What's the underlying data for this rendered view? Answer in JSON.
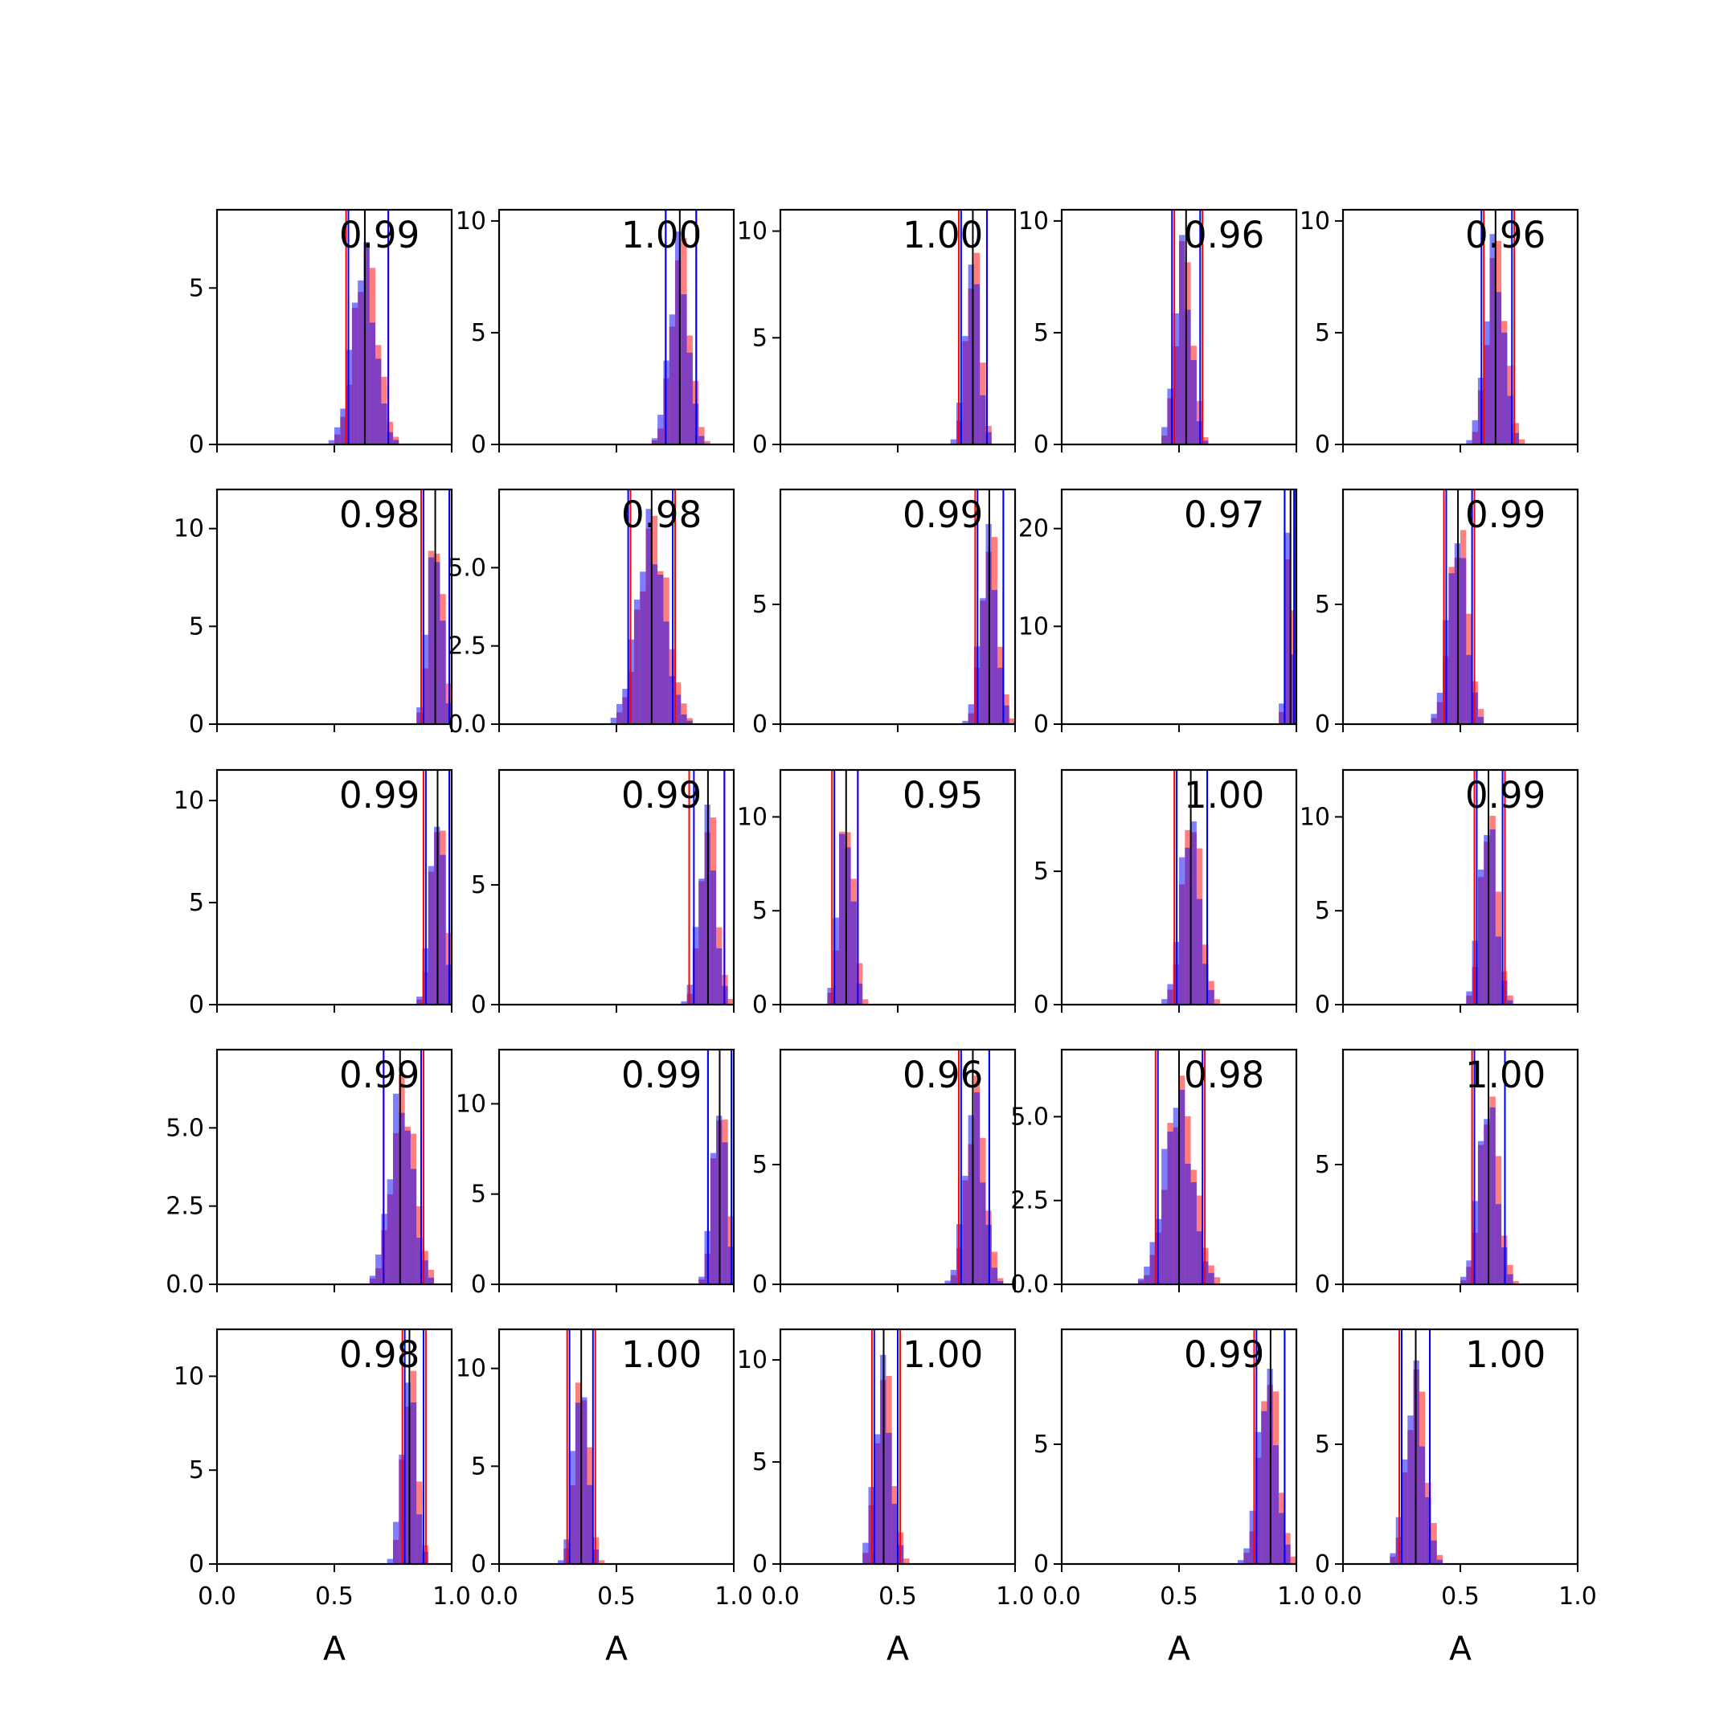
{
  "figure": {
    "rows": 5,
    "cols": 5,
    "x_axis_label": "A",
    "colors": {
      "series_red": "#ff0000",
      "series_blue": "#0000ff",
      "overlap": "#7f3fbf",
      "median_line": "#000000",
      "frame": "#000000"
    }
  },
  "chart_data": [
    {
      "type": "bar",
      "panel": "r1c1",
      "annotation": "0.99",
      "xlim": [
        0,
        1
      ],
      "ylim": [
        0,
        7.5
      ],
      "yticks": [
        0,
        5
      ],
      "ytick_labels": [
        "0",
        "5"
      ],
      "xticks": [
        0,
        0.5,
        1
      ],
      "xtick_labels": [],
      "center": 0.63,
      "spread": 0.05,
      "peak": 7.0,
      "red_bounds": [
        0.55,
        0.73
      ],
      "blue_bounds": [
        0.56,
        0.73
      ],
      "median": 0.63
    },
    {
      "type": "bar",
      "panel": "r1c2",
      "annotation": "1.00",
      "xlim": [
        0,
        1
      ],
      "ylim": [
        0,
        10.5
      ],
      "yticks": [
        0,
        5,
        10
      ],
      "ytick_labels": [
        "0",
        "5",
        "10"
      ],
      "xticks": [
        0,
        0.5,
        1
      ],
      "xtick_labels": [],
      "center": 0.77,
      "spread": 0.04,
      "peak": 10.0,
      "red_bounds": [
        0.71,
        0.84
      ],
      "blue_bounds": [
        0.71,
        0.84
      ],
      "median": 0.77
    },
    {
      "type": "bar",
      "panel": "r1c3",
      "annotation": "1.00",
      "xlim": [
        0,
        1
      ],
      "ylim": [
        0,
        11
      ],
      "yticks": [
        0,
        5,
        10
      ],
      "ytick_labels": [
        "0",
        "5",
        "10"
      ],
      "xticks": [
        0,
        0.5,
        1
      ],
      "xtick_labels": [],
      "center": 0.82,
      "spread": 0.03,
      "peak": 10.3,
      "red_bounds": [
        0.76,
        0.88
      ],
      "blue_bounds": [
        0.77,
        0.88
      ],
      "median": 0.82
    },
    {
      "type": "bar",
      "panel": "r1c4",
      "annotation": "0.96",
      "xlim": [
        0,
        1
      ],
      "ylim": [
        0,
        10.5
      ],
      "yticks": [
        0,
        5,
        10
      ],
      "ytick_labels": [
        "0",
        "5",
        "10"
      ],
      "xticks": [
        0,
        0.5,
        1
      ],
      "xtick_labels": [],
      "center": 0.52,
      "spread": 0.035,
      "peak": 10.0,
      "red_bounds": [
        0.48,
        0.6
      ],
      "blue_bounds": [
        0.47,
        0.59
      ],
      "median": 0.53
    },
    {
      "type": "bar",
      "panel": "r1c5",
      "annotation": "0.96",
      "xlim": [
        0,
        1
      ],
      "ylim": [
        0,
        10.5
      ],
      "yticks": [
        0,
        5,
        10
      ],
      "ytick_labels": [
        "0",
        "5",
        "10"
      ],
      "xticks": [
        0,
        0.5,
        1
      ],
      "xtick_labels": [],
      "center": 0.65,
      "spread": 0.04,
      "peak": 10.0,
      "red_bounds": [
        0.6,
        0.73
      ],
      "blue_bounds": [
        0.59,
        0.72
      ],
      "median": 0.65
    },
    {
      "type": "bar",
      "panel": "r2c1",
      "annotation": "0.98",
      "xlim": [
        0,
        1
      ],
      "ylim": [
        0,
        12
      ],
      "yticks": [
        0,
        5,
        10
      ],
      "ytick_labels": [
        "0",
        "5",
        "10"
      ],
      "xticks": [
        0,
        0.5,
        1
      ],
      "xtick_labels": [],
      "center": 0.93,
      "spread": 0.03,
      "peak": 11.4,
      "red_bounds": [
        0.87,
        0.99
      ],
      "blue_bounds": [
        0.88,
        0.99
      ],
      "median": 0.93
    },
    {
      "type": "bar",
      "panel": "r2c2",
      "annotation": "0.98",
      "xlim": [
        0,
        1
      ],
      "ylim": [
        0,
        7.5
      ],
      "yticks": [
        0,
        2.5,
        5
      ],
      "ytick_labels": [
        "0.0",
        "2.5",
        "5.0"
      ],
      "xticks": [
        0,
        0.5,
        1
      ],
      "xtick_labels": [],
      "center": 0.65,
      "spread": 0.06,
      "peak": 7.2,
      "red_bounds": [
        0.56,
        0.75
      ],
      "blue_bounds": [
        0.55,
        0.74
      ],
      "median": 0.65
    },
    {
      "type": "bar",
      "panel": "r2c3",
      "annotation": "0.99",
      "xlim": [
        0,
        1
      ],
      "ylim": [
        0,
        9.8
      ],
      "yticks": [
        0,
        5
      ],
      "ytick_labels": [
        "0",
        "5"
      ],
      "xticks": [
        0,
        0.5,
        1
      ],
      "xtick_labels": [],
      "center": 0.89,
      "spread": 0.035,
      "peak": 9.0,
      "red_bounds": [
        0.83,
        0.95
      ],
      "blue_bounds": [
        0.84,
        0.95
      ],
      "median": 0.89
    },
    {
      "type": "bar",
      "panel": "r2c4",
      "annotation": "0.97",
      "xlim": [
        0,
        1
      ],
      "ylim": [
        0,
        24
      ],
      "yticks": [
        0,
        10,
        20
      ],
      "ytick_labels": [
        "0",
        "10",
        "20"
      ],
      "xticks": [
        0,
        0.5,
        1
      ],
      "xtick_labels": [],
      "center": 0.97,
      "spread": 0.015,
      "peak": 22.0,
      "red_bounds": [
        0.95,
        0.995
      ],
      "blue_bounds": [
        0.95,
        0.99
      ],
      "median": 0.975
    },
    {
      "type": "bar",
      "panel": "r2c5",
      "annotation": "0.99",
      "xlim": [
        0,
        1
      ],
      "ylim": [
        0,
        9.8
      ],
      "yticks": [
        0,
        5
      ],
      "ytick_labels": [
        "0",
        "5"
      ],
      "xticks": [
        0,
        0.5,
        1
      ],
      "xtick_labels": [],
      "center": 0.49,
      "spread": 0.04,
      "peak": 9.3,
      "red_bounds": [
        0.43,
        0.56
      ],
      "blue_bounds": [
        0.44,
        0.55
      ],
      "median": 0.49
    },
    {
      "type": "bar",
      "panel": "r3c1",
      "annotation": "0.99",
      "xlim": [
        0,
        1
      ],
      "ylim": [
        0,
        11.5
      ],
      "yticks": [
        0,
        5,
        10
      ],
      "ytick_labels": [
        "0",
        "5",
        "10"
      ],
      "xticks": [
        0,
        0.5,
        1
      ],
      "xtick_labels": [],
      "center": 0.94,
      "spread": 0.03,
      "peak": 11.2,
      "red_bounds": [
        0.88,
        0.99
      ],
      "blue_bounds": [
        0.89,
        0.99
      ],
      "median": 0.94
    },
    {
      "type": "bar",
      "panel": "r3c2",
      "annotation": "0.99",
      "xlim": [
        0,
        1
      ],
      "ylim": [
        0,
        9.8
      ],
      "yticks": [
        0,
        5
      ],
      "ytick_labels": [
        "0",
        "5"
      ],
      "xticks": [
        0,
        0.5,
        1
      ],
      "xtick_labels": [],
      "center": 0.89,
      "spread": 0.035,
      "peak": 9.0,
      "red_bounds": [
        0.81,
        0.96
      ],
      "blue_bounds": [
        0.83,
        0.96
      ],
      "median": 0.89
    },
    {
      "type": "bar",
      "panel": "r3c3",
      "annotation": "0.95",
      "xlim": [
        0,
        1
      ],
      "ylim": [
        0,
        12.5
      ],
      "yticks": [
        0,
        5,
        10
      ],
      "ytick_labels": [
        "0",
        "5",
        "10"
      ],
      "xticks": [
        0,
        0.5,
        1
      ],
      "xtick_labels": [],
      "center": 0.28,
      "spread": 0.03,
      "peak": 11.8,
      "red_bounds": [
        0.22,
        0.33
      ],
      "blue_bounds": [
        0.23,
        0.33
      ],
      "median": 0.28
    },
    {
      "type": "bar",
      "panel": "r3c4",
      "annotation": "1.00",
      "xlim": [
        0,
        1
      ],
      "ylim": [
        0,
        8.8
      ],
      "yticks": [
        0,
        5
      ],
      "ytick_labels": [
        "0",
        "5"
      ],
      "xticks": [
        0,
        0.5,
        1
      ],
      "xtick_labels": [],
      "center": 0.55,
      "spread": 0.04,
      "peak": 8.2,
      "red_bounds": [
        0.48,
        0.62
      ],
      "blue_bounds": [
        0.49,
        0.62
      ],
      "median": 0.55
    },
    {
      "type": "bar",
      "panel": "r3c5",
      "annotation": "0.99",
      "xlim": [
        0,
        1
      ],
      "ylim": [
        0,
        12.5
      ],
      "yticks": [
        0,
        5,
        10
      ],
      "ytick_labels": [
        "0",
        "5",
        "10"
      ],
      "xticks": [
        0,
        0.5,
        1
      ],
      "xtick_labels": [],
      "center": 0.62,
      "spread": 0.035,
      "peak": 11.8,
      "red_bounds": [
        0.56,
        0.69
      ],
      "blue_bounds": [
        0.57,
        0.68
      ],
      "median": 0.62
    },
    {
      "type": "bar",
      "panel": "r4c1",
      "annotation": "0.99",
      "xlim": [
        0,
        1
      ],
      "ylim": [
        0,
        7.5
      ],
      "yticks": [
        0,
        2.5,
        5
      ],
      "ytick_labels": [
        "0.0",
        "2.5",
        "5.0"
      ],
      "xticks": [
        0,
        0.5,
        1
      ],
      "xtick_labels": [],
      "center": 0.79,
      "spread": 0.05,
      "peak": 7.0,
      "red_bounds": [
        0.71,
        0.88
      ],
      "blue_bounds": [
        0.71,
        0.87
      ],
      "median": 0.78
    },
    {
      "type": "bar",
      "panel": "r4c2",
      "annotation": "0.99",
      "xlim": [
        0,
        1
      ],
      "ylim": [
        0,
        13
      ],
      "yticks": [
        0,
        5,
        10
      ],
      "ytick_labels": [
        "0",
        "5",
        "10"
      ],
      "xticks": [
        0,
        0.5,
        1
      ],
      "xtick_labels": [],
      "center": 0.94,
      "spread": 0.03,
      "peak": 12.0,
      "red_bounds": [
        0.89,
        0.99
      ],
      "blue_bounds": [
        0.89,
        0.99
      ],
      "median": 0.94
    },
    {
      "type": "bar",
      "panel": "r4c3",
      "annotation": "0.96",
      "xlim": [
        0,
        1
      ],
      "ylim": [
        0,
        9.8
      ],
      "yticks": [
        0,
        5
      ],
      "ytick_labels": [
        "0",
        "5"
      ],
      "xticks": [
        0,
        0.5,
        1
      ],
      "xtick_labels": [],
      "center": 0.83,
      "spread": 0.04,
      "peak": 9.0,
      "red_bounds": [
        0.76,
        0.89
      ],
      "blue_bounds": [
        0.77,
        0.89
      ],
      "median": 0.82
    },
    {
      "type": "bar",
      "panel": "r4c4",
      "annotation": "0.98",
      "xlim": [
        0,
        1
      ],
      "ylim": [
        0,
        7.0
      ],
      "yticks": [
        0,
        2.5,
        5
      ],
      "ytick_labels": [
        "0.0",
        "2.5",
        "5.0"
      ],
      "xticks": [
        0,
        0.5,
        1
      ],
      "xtick_labels": [],
      "center": 0.5,
      "spread": 0.06,
      "peak": 6.5,
      "red_bounds": [
        0.4,
        0.61
      ],
      "blue_bounds": [
        0.41,
        0.6
      ],
      "median": 0.5
    },
    {
      "type": "bar",
      "panel": "r4c5",
      "annotation": "1.00",
      "xlim": [
        0,
        1
      ],
      "ylim": [
        0,
        9.8
      ],
      "yticks": [
        0,
        5
      ],
      "ytick_labels": [
        "0",
        "5"
      ],
      "xticks": [
        0,
        0.5,
        1
      ],
      "xtick_labels": [],
      "center": 0.62,
      "spread": 0.04,
      "peak": 9.0,
      "red_bounds": [
        0.55,
        0.69
      ],
      "blue_bounds": [
        0.56,
        0.69
      ],
      "median": 0.62
    },
    {
      "type": "bar",
      "panel": "r5c1",
      "annotation": "0.98",
      "xlim": [
        0,
        1
      ],
      "ylim": [
        0,
        12.5
      ],
      "yticks": [
        0,
        5,
        10
      ],
      "ytick_labels": [
        "0",
        "5",
        "10"
      ],
      "xticks": [
        0,
        0.5,
        1
      ],
      "xtick_labels": [
        "0.0",
        "0.5",
        "1.0"
      ],
      "center": 0.82,
      "spread": 0.03,
      "peak": 11.8,
      "red_bounds": [
        0.79,
        0.89
      ],
      "blue_bounds": [
        0.8,
        0.88
      ],
      "median": 0.82
    },
    {
      "type": "bar",
      "panel": "r5c2",
      "annotation": "1.00",
      "xlim": [
        0,
        1
      ],
      "ylim": [
        0,
        12.0
      ],
      "yticks": [
        0,
        5,
        10
      ],
      "ytick_labels": [
        "0",
        "5",
        "10"
      ],
      "xticks": [
        0,
        0.5,
        1
      ],
      "xtick_labels": [
        "0.0",
        "0.5",
        "1.0"
      ],
      "center": 0.35,
      "spread": 0.03,
      "peak": 11.4,
      "red_bounds": [
        0.29,
        0.41
      ],
      "blue_bounds": [
        0.3,
        0.4
      ],
      "median": 0.35
    },
    {
      "type": "bar",
      "panel": "r5c3",
      "annotation": "1.00",
      "xlim": [
        0,
        1
      ],
      "ylim": [
        0,
        11.5
      ],
      "yticks": [
        0,
        5,
        10
      ],
      "ytick_labels": [
        "0",
        "5",
        "10"
      ],
      "xticks": [
        0,
        0.5,
        1
      ],
      "xtick_labels": [
        "0.0",
        "0.5",
        "1.0"
      ],
      "center": 0.44,
      "spread": 0.035,
      "peak": 10.8,
      "red_bounds": [
        0.39,
        0.51
      ],
      "blue_bounds": [
        0.4,
        0.5
      ],
      "median": 0.44
    },
    {
      "type": "bar",
      "panel": "r5c4",
      "annotation": "0.99",
      "xlim": [
        0,
        1
      ],
      "ylim": [
        0,
        9.8
      ],
      "yticks": [
        0,
        5
      ],
      "ytick_labels": [
        "0",
        "5"
      ],
      "xticks": [
        0,
        0.5,
        1
      ],
      "xtick_labels": [
        "0.0",
        "0.5",
        "1.0"
      ],
      "center": 0.88,
      "spread": 0.04,
      "peak": 9.2,
      "red_bounds": [
        0.82,
        0.95
      ],
      "blue_bounds": [
        0.83,
        0.95
      ],
      "median": 0.89
    },
    {
      "type": "bar",
      "panel": "r5c5",
      "annotation": "1.00",
      "xlim": [
        0,
        1
      ],
      "ylim": [
        0,
        9.8
      ],
      "yticks": [
        0,
        5
      ],
      "ytick_labels": [
        "0",
        "5"
      ],
      "xticks": [
        0,
        0.5,
        1
      ],
      "xtick_labels": [
        "0.0",
        "0.5",
        "1.0"
      ],
      "center": 0.31,
      "spread": 0.04,
      "peak": 9.0,
      "red_bounds": [
        0.24,
        0.37
      ],
      "blue_bounds": [
        0.25,
        0.37
      ],
      "median": 0.31
    }
  ]
}
